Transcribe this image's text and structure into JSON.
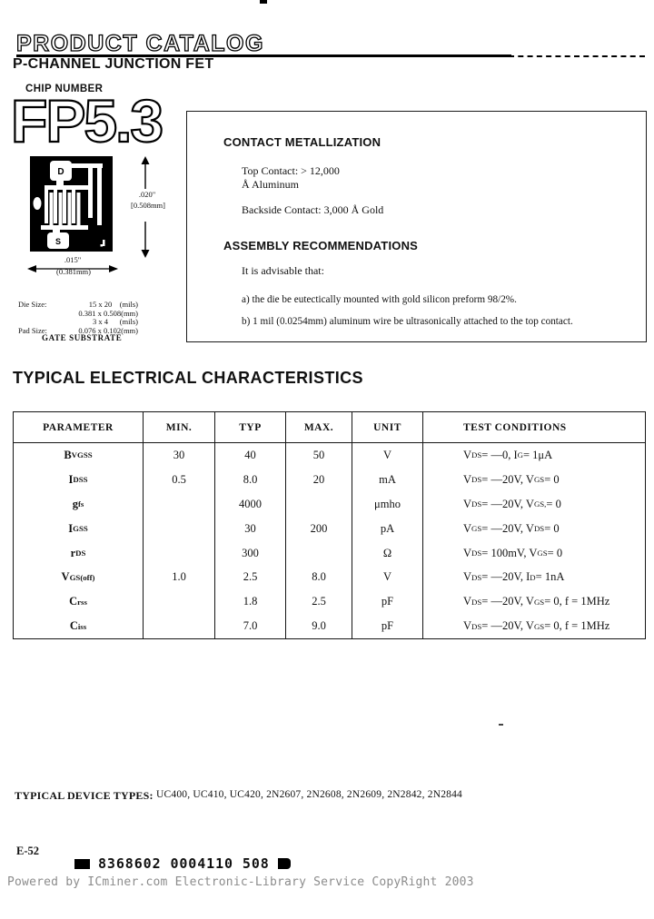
{
  "header": {
    "catalog_title": "PRODUCT CATALOG",
    "subtitle": "P-CHANNEL JUNCTION FET"
  },
  "chip": {
    "number_label": "CHIP NUMBER",
    "number": "FP5.3",
    "pad_d": "D",
    "pad_s": "S",
    "dim_height_in": ".020\"",
    "dim_height_mm": "[0.508mm]",
    "dim_width_in": ".015\"",
    "dim_width_mm": "(0.381mm)",
    "die_size_label": "Die Size:",
    "die_size_mils": "15 x 20    (mils)",
    "die_size_mm": "0.381 x 0.508(mm)",
    "pad_size_label": "Pad Size:",
    "pad_size_mils": "3 x 4      (mils)",
    "pad_size_mm": "0.076 x 0.102(mm)",
    "pad_note": "GATE SUBSTRATE"
  },
  "metallization": {
    "title": "CONTACT METALLIZATION",
    "top_contact_line1": "Top Contact: > 12,000",
    "top_contact_line2": "Å Aluminum",
    "backside_contact": "Backside Contact: 3,000 Å Gold"
  },
  "assembly": {
    "title": "ASSEMBLY RECOMMENDATIONS",
    "intro": "It is advisable that:",
    "item_a": "a) the die be eutectically mounted with gold silicon preform 98/2%.",
    "item_b": "b) 1 mil (0.0254mm) aluminum wire be ultrasonically attached to the top contact."
  },
  "electrical": {
    "title": "TYPICAL ELECTRICAL CHARACTERISTICS",
    "headers": [
      "PARAMETER",
      "MIN.",
      "TYP",
      "MAX.",
      "UNIT",
      "TEST CONDITIONS"
    ],
    "rows": [
      {
        "param": [
          {
            "t": "B"
          },
          {
            "s": "VGSS"
          }
        ],
        "min": "30",
        "typ": "40",
        "max": "50",
        "unit": "V",
        "test": [
          {
            "t": "V"
          },
          {
            "s": "DS"
          },
          {
            "t": " = —0, I"
          },
          {
            "s": "G"
          },
          {
            "t": " = 1μA"
          }
        ]
      },
      {
        "param": [
          {
            "t": "I"
          },
          {
            "s": "DSS"
          }
        ],
        "min": "0.5",
        "typ": "8.0",
        "max": "20",
        "unit": "mA",
        "test": [
          {
            "t": "V"
          },
          {
            "s": "DS"
          },
          {
            "t": " = —20V, V"
          },
          {
            "s": "GS"
          },
          {
            "t": " = 0"
          }
        ]
      },
      {
        "param": [
          {
            "t": "g"
          },
          {
            "s": "fs"
          }
        ],
        "min": "",
        "typ": "4000",
        "max": "",
        "unit": "μmho",
        "test": [
          {
            "t": "V"
          },
          {
            "s": "DS"
          },
          {
            "t": " = —20V, V"
          },
          {
            "s": "GS,"
          },
          {
            "t": " = 0"
          }
        ]
      },
      {
        "param": [
          {
            "t": "I"
          },
          {
            "s": "GSS"
          }
        ],
        "min": "",
        "typ": "30",
        "max": "200",
        "unit": "pA",
        "test": [
          {
            "t": "V"
          },
          {
            "s": "GS"
          },
          {
            "t": " = —20V, V"
          },
          {
            "s": "DS"
          },
          {
            "t": " = 0"
          }
        ]
      },
      {
        "param": [
          {
            "t": "r"
          },
          {
            "s": "DS"
          }
        ],
        "min": "",
        "typ": "300",
        "max": "",
        "unit": "Ω",
        "test": [
          {
            "t": "V"
          },
          {
            "s": "DS"
          },
          {
            "t": " = 100mV, V"
          },
          {
            "s": "GS"
          },
          {
            "t": " = 0"
          }
        ]
      },
      {
        "param": [
          {
            "t": "V"
          },
          {
            "s": "GS(off)"
          }
        ],
        "min": "1.0",
        "typ": "2.5",
        "max": "8.0",
        "unit": "V",
        "test": [
          {
            "t": "V"
          },
          {
            "s": "DS"
          },
          {
            "t": " = —20V, I"
          },
          {
            "s": "D"
          },
          {
            "t": " = 1nA"
          }
        ]
      },
      {
        "param": [
          {
            "t": "C"
          },
          {
            "s": "rss"
          }
        ],
        "min": "",
        "typ": "1.8",
        "max": "2.5",
        "unit": "pF",
        "test": [
          {
            "t": "V"
          },
          {
            "s": "DS"
          },
          {
            "t": " = —20V, V"
          },
          {
            "s": "GS"
          },
          {
            "t": " = 0, f = 1MHz"
          }
        ]
      },
      {
        "param": [
          {
            "t": "C"
          },
          {
            "s": "iss"
          }
        ],
        "min": "",
        "typ": "7.0",
        "max": "9.0",
        "unit": "pF",
        "test": [
          {
            "t": "V"
          },
          {
            "s": "DS"
          },
          {
            "t": " = —20V, V"
          },
          {
            "s": "GS"
          },
          {
            "t": " = 0, f = 1MHz"
          }
        ]
      }
    ]
  },
  "bottom": {
    "device_types_label": "TYPICAL DEVICE TYPES:",
    "device_types": "UC400, UC410, UC420, 2N2607, 2N2608, 2N2609, 2N2842, 2N2844",
    "page_number": "E-52",
    "barcode_text": "8368602 0004110 508",
    "footer_text": "Powered by ICminer.com Electronic-Library Service CopyRight 2003"
  },
  "colors": {
    "ink": "#111111",
    "footer_gray": "#8c8c8c"
  }
}
